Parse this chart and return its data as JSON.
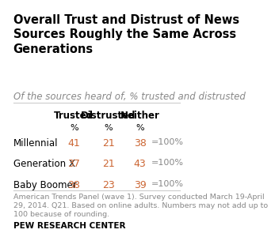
{
  "title": "Overall Trust and Distrust of News\nSources Roughly the Same Across\nGenerations",
  "subtitle": "Of the sources heard of, % trusted and distrusted",
  "columns": [
    "Trusted",
    "Distrusted",
    "Neither"
  ],
  "col_sub": [
    "%",
    "%",
    "%"
  ],
  "rows": [
    "Millennial",
    "Generation X",
    "Baby Boomer"
  ],
  "values": [
    [
      41,
      21,
      38
    ],
    [
      37,
      21,
      43
    ],
    [
      38,
      23,
      39
    ]
  ],
  "total_label": "=100%",
  "footnote": "American Trends Panel (wave 1). Survey conducted March 19-April\n29, 2014. Q21. Based on online adults. Numbers may not add up to\n100 because of rounding.",
  "source": "PEW RESEARCH CENTER",
  "title_color": "#000000",
  "subtitle_color": "#888888",
  "header_color": "#000000",
  "row_label_color": "#000000",
  "value_color": "#cc6633",
  "total_color": "#888888",
  "footnote_color": "#888888",
  "source_color": "#000000",
  "bg_color": "#ffffff",
  "title_fontsize": 10.5,
  "subtitle_fontsize": 8.5,
  "header_fontsize": 8.5,
  "row_fontsize": 8.5,
  "value_fontsize": 9,
  "footnote_fontsize": 6.8,
  "source_fontsize": 7.5
}
